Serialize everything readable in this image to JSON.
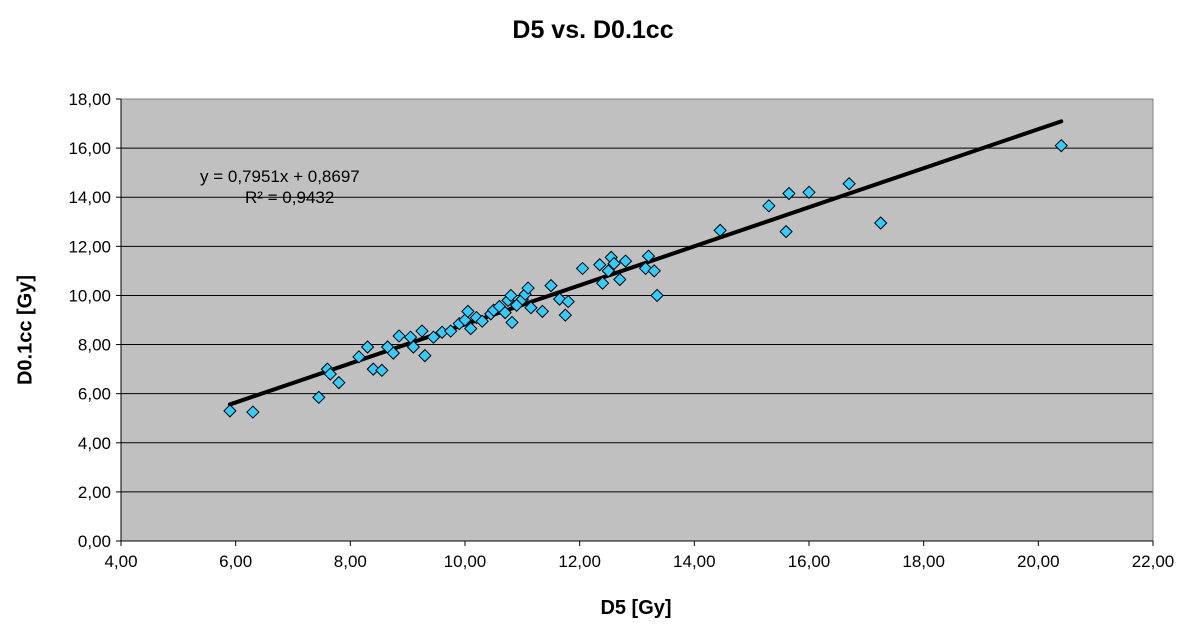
{
  "chart_data": {
    "type": "scatter",
    "title": "D5 vs. D0.1cc",
    "xlabel": "D5 [Gy]",
    "ylabel": "D0.1cc [Gy]",
    "xlim": [
      4,
      22
    ],
    "ylim": [
      0,
      18
    ],
    "x_ticks": [
      "4,00",
      "6,00",
      "8,00",
      "10,00",
      "12,00",
      "14,00",
      "16,00",
      "18,00",
      "20,00",
      "22,00"
    ],
    "y_ticks": [
      "0,00",
      "2,00",
      "4,00",
      "6,00",
      "8,00",
      "10,00",
      "12,00",
      "14,00",
      "16,00",
      "18,00"
    ],
    "grid": "horizontal",
    "plot_background": "#c0c0c0",
    "marker_color": "#33ccff",
    "marker": "diamond",
    "trendline": {
      "slope": 0.7951,
      "intercept": 0.8697,
      "x_range": [
        5.9,
        20.4
      ],
      "equation_label": "y = 0,7951x + 0,8697",
      "r2_label": "R² = 0,9432",
      "color": "#000000"
    },
    "points": [
      [
        5.9,
        5.3
      ],
      [
        6.3,
        5.25
      ],
      [
        7.45,
        5.85
      ],
      [
        7.6,
        7.0
      ],
      [
        7.65,
        6.8
      ],
      [
        7.8,
        6.45
      ],
      [
        8.15,
        7.5
      ],
      [
        8.3,
        7.9
      ],
      [
        8.4,
        7.0
      ],
      [
        8.55,
        6.95
      ],
      [
        8.65,
        7.9
      ],
      [
        8.75,
        7.65
      ],
      [
        8.85,
        8.35
      ],
      [
        9.05,
        8.3
      ],
      [
        9.1,
        7.9
      ],
      [
        9.25,
        8.55
      ],
      [
        9.3,
        7.55
      ],
      [
        9.45,
        8.3
      ],
      [
        9.6,
        8.5
      ],
      [
        9.75,
        8.55
      ],
      [
        9.9,
        8.85
      ],
      [
        10.0,
        9.0
      ],
      [
        10.05,
        9.35
      ],
      [
        10.1,
        8.65
      ],
      [
        10.2,
        9.1
      ],
      [
        10.3,
        8.95
      ],
      [
        10.45,
        9.25
      ],
      [
        10.5,
        9.4
      ],
      [
        10.6,
        9.55
      ],
      [
        10.7,
        9.3
      ],
      [
        10.75,
        9.8
      ],
      [
        10.8,
        10.0
      ],
      [
        10.82,
        8.9
      ],
      [
        10.9,
        9.6
      ],
      [
        11.0,
        9.85
      ],
      [
        11.05,
        10.05
      ],
      [
        11.1,
        10.3
      ],
      [
        11.15,
        9.5
      ],
      [
        11.35,
        9.35
      ],
      [
        11.5,
        10.4
      ],
      [
        11.65,
        9.85
      ],
      [
        11.75,
        9.2
      ],
      [
        11.8,
        9.75
      ],
      [
        12.05,
        11.1
      ],
      [
        12.35,
        11.25
      ],
      [
        12.4,
        10.5
      ],
      [
        12.5,
        11.0
      ],
      [
        12.55,
        11.55
      ],
      [
        12.6,
        11.3
      ],
      [
        12.7,
        10.65
      ],
      [
        12.8,
        11.4
      ],
      [
        13.15,
        11.1
      ],
      [
        13.2,
        11.6
      ],
      [
        13.3,
        11.0
      ],
      [
        13.35,
        10.0
      ],
      [
        14.45,
        12.65
      ],
      [
        15.3,
        13.65
      ],
      [
        15.6,
        12.6
      ],
      [
        15.65,
        14.15
      ],
      [
        16.0,
        14.2
      ],
      [
        16.7,
        14.55
      ],
      [
        17.25,
        12.95
      ],
      [
        20.4,
        16.1
      ]
    ]
  }
}
